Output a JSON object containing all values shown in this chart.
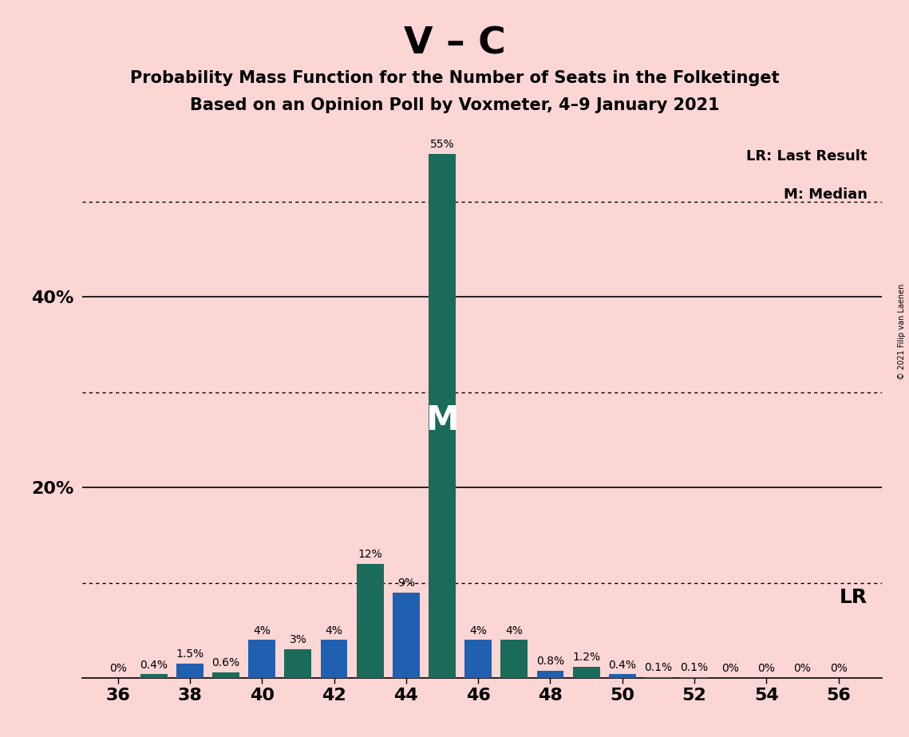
{
  "title_main": "V – C",
  "title_sub1": "Probability Mass Function for the Number of Seats in the Folketinget",
  "title_sub2": "Based on an Opinion Poll by Voxmeter, 4–9 January 2021",
  "copyright": "© 2021 Filip van Laenen",
  "background_color": "#fcd5d5",
  "bar_color_blue": "#2060b0",
  "bar_color_teal": "#1a6b5a",
  "seats": [
    36,
    37,
    38,
    39,
    40,
    41,
    42,
    43,
    44,
    45,
    46,
    47,
    48,
    49,
    50,
    51,
    52,
    53,
    54,
    55,
    56
  ],
  "values": [
    0.0,
    0.4,
    1.5,
    0.6,
    4.0,
    3.0,
    4.0,
    12.0,
    9.0,
    55.0,
    4.0,
    4.0,
    0.8,
    1.2,
    0.4,
    0.1,
    0.1,
    0.0,
    0.0,
    0.0,
    0.0
  ],
  "colors": [
    "blue",
    "teal",
    "blue",
    "teal",
    "blue",
    "teal",
    "blue",
    "teal",
    "blue",
    "teal",
    "blue",
    "teal",
    "blue",
    "teal",
    "blue",
    "teal",
    "blue",
    "teal",
    "blue",
    "teal",
    "blue"
  ],
  "labels": [
    "0%",
    "0.4%",
    "1.5%",
    "0.6%",
    "4%",
    "3%",
    "4%",
    "12%",
    "9%",
    "55%",
    "4%",
    "4%",
    "0.8%",
    "1.2%",
    "0.4%",
    "0.1%",
    "0.1%",
    "0%",
    "0%",
    "0%",
    "0%"
  ],
  "show_label": [
    true,
    true,
    true,
    true,
    true,
    true,
    true,
    true,
    true,
    true,
    true,
    true,
    true,
    true,
    true,
    true,
    true,
    true,
    true,
    true,
    true
  ],
  "ylim": [
    0,
    58
  ],
  "xticks": [
    36,
    38,
    40,
    42,
    44,
    46,
    48,
    50,
    52,
    54,
    56
  ],
  "dotted_lines": [
    10,
    30,
    50
  ],
  "solid_lines": [
    20,
    40
  ],
  "median_seat": 45,
  "lr_seat": 46,
  "legend_lr": "LR: Last Result",
  "legend_m": "M: Median",
  "lr_label": "LR",
  "bar_width": 0.75
}
